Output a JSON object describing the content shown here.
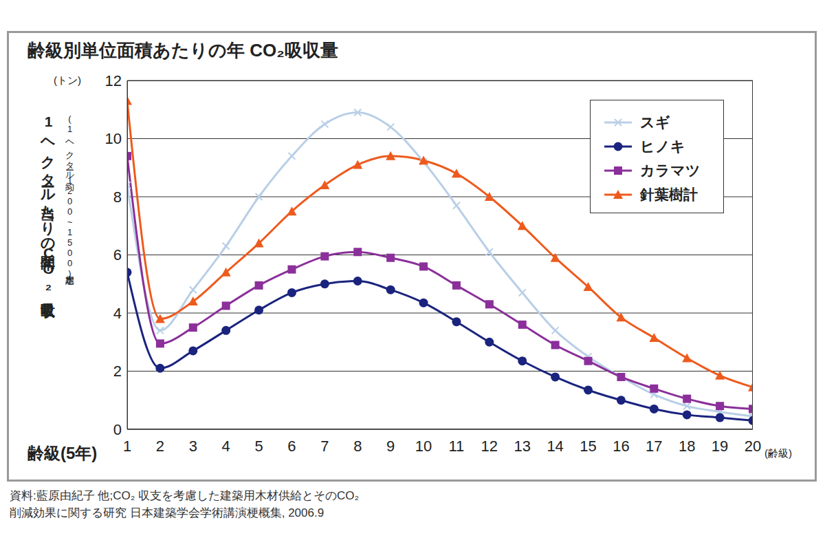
{
  "chart_data": {
    "type": "line",
    "title": "齢級別単位面積あたりの年 CO₂吸収量",
    "x_label": "齢級(5年)",
    "x_unit": "(齢級)",
    "y_label": "1ヘクタール当たりの年間CO₂吸収量",
    "y_label_note": "(1ヘクタール約1200~1500本想定)",
    "y_unit": "(トン)",
    "source": [
      "資料:藍原由紀子 他;CO₂ 収支を考慮した建築用木材供給とそのCO₂",
      "削減効果に関する研究 日本建築学会学術講演梗概集, 2006.9"
    ],
    "x": [
      1,
      2,
      3,
      4,
      5,
      6,
      7,
      8,
      9,
      10,
      11,
      12,
      13,
      14,
      15,
      16,
      17,
      18,
      19,
      20
    ],
    "xlim": [
      1,
      20
    ],
    "xticks": [
      1,
      2,
      3,
      4,
      5,
      6,
      7,
      8,
      9,
      10,
      11,
      12,
      13,
      14,
      15,
      16,
      17,
      18,
      19,
      20
    ],
    "ylim": [
      0,
      12
    ],
    "yticks": [
      0,
      2,
      4,
      6,
      8,
      10,
      12
    ],
    "grid": true,
    "legend": "top-right",
    "series": [
      {
        "name": "スギ",
        "color": "#b9cfe6",
        "marker": "cross",
        "values": [
          8.4,
          3.4,
          4.8,
          6.3,
          8.0,
          9.4,
          10.5,
          10.9,
          10.4,
          9.2,
          7.7,
          6.1,
          4.7,
          3.4,
          2.5,
          1.8,
          1.2,
          0.8,
          0.6,
          0.45
        ]
      },
      {
        "name": "ヒノキ",
        "color": "#1a237e",
        "marker": "circle",
        "values": [
          5.4,
          2.1,
          2.7,
          3.4,
          4.1,
          4.7,
          5.0,
          5.1,
          4.8,
          4.35,
          3.7,
          3.0,
          2.35,
          1.8,
          1.35,
          1.0,
          0.7,
          0.5,
          0.4,
          0.3
        ]
      },
      {
        "name": "カラマツ",
        "color": "#8b2f9a",
        "marker": "square",
        "values": [
          9.4,
          2.95,
          3.5,
          4.25,
          4.95,
          5.5,
          5.95,
          6.1,
          5.9,
          5.6,
          4.95,
          4.3,
          3.6,
          2.9,
          2.35,
          1.8,
          1.4,
          1.05,
          0.8,
          0.7
        ]
      },
      {
        "name": "針葉樹計",
        "color": "#ee5a1d",
        "marker": "triangle",
        "values": [
          11.3,
          3.8,
          4.4,
          5.4,
          6.4,
          7.5,
          8.4,
          9.1,
          9.4,
          9.25,
          8.8,
          8.0,
          7.0,
          5.9,
          4.9,
          3.85,
          3.15,
          2.45,
          1.85,
          1.45
        ]
      }
    ]
  }
}
